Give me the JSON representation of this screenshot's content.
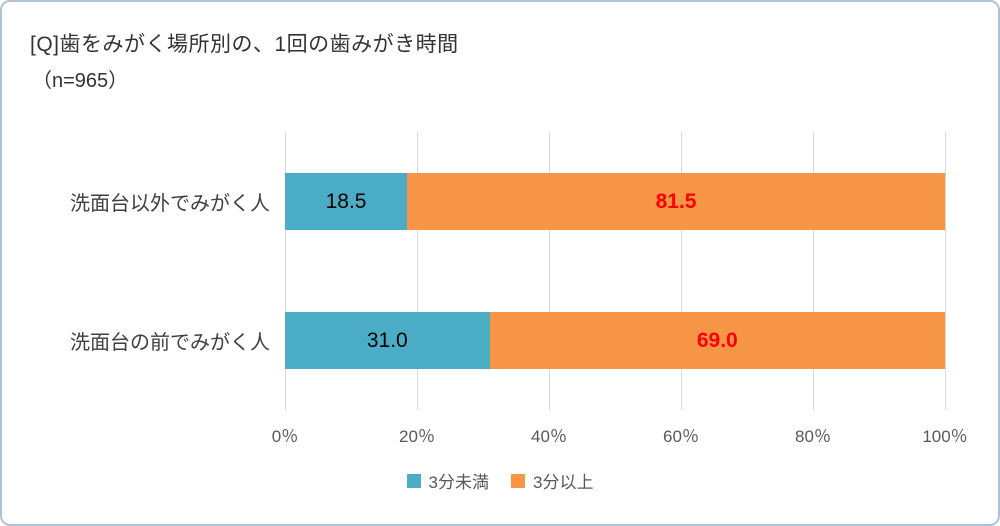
{
  "header": {
    "title": "[Q]歯をみがく場所別の、1回の歯みがき時間",
    "subtitle": "（n=965）"
  },
  "chart_data": {
    "type": "bar",
    "orientation": "horizontal",
    "stacked": true,
    "unit": "%",
    "title": "[Q]歯をみがく場所別の、1回の歯みがき時間",
    "sample_size_label": "（n=965）",
    "categories": [
      "洗面台以外でみがく人",
      "洗面台の前でみがく人"
    ],
    "series": [
      {
        "name": "3分未満",
        "color": "#4BACC6",
        "values": [
          18.5,
          31.0
        ],
        "value_label_color": "#000000",
        "value_label_bold": false
      },
      {
        "name": "3分以上",
        "color": "#F79646",
        "values": [
          81.5,
          69.0
        ],
        "value_label_color": "#FF0000",
        "value_label_bold": true
      }
    ],
    "value_labels": [
      [
        "18.5",
        "81.5"
      ],
      [
        "31.0",
        "69.0"
      ]
    ],
    "xlim": [
      0,
      100
    ],
    "x_ticks": [
      "0％",
      "20％",
      "40％",
      "60％",
      "80％",
      "100％"
    ],
    "grid": true,
    "gridline_color": "#d9d9d9",
    "legend_position": "bottom"
  }
}
